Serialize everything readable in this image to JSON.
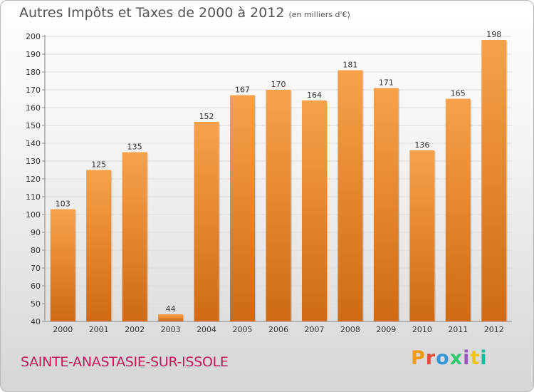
{
  "header": {
    "title": "Autres Impôts et Taxes de 2000 à 2012",
    "unit": "(en milliers d'€)"
  },
  "footer": {
    "town": "SAINTE-ANASTASIE-SUR-ISSOLE",
    "brand": "Proxiti",
    "brand_colors": [
      "#f39c12",
      "#e74c3c",
      "#3498db",
      "#2ecc71",
      "#9b59b6",
      "#f1c40f",
      "#1abc9c"
    ]
  },
  "chart_data": {
    "type": "bar",
    "categories": [
      "2000",
      "2001",
      "2002",
      "2003",
      "2004",
      "2005",
      "2006",
      "2007",
      "2008",
      "2009",
      "2010",
      "2011",
      "2012"
    ],
    "values": [
      103,
      125,
      135,
      44,
      152,
      167,
      170,
      164,
      181,
      171,
      136,
      165,
      198
    ],
    "title": "Autres Impôts et Taxes de 2000 à 2012",
    "ylim": [
      40,
      200
    ],
    "yticks": [
      40,
      50,
      60,
      70,
      80,
      90,
      100,
      110,
      120,
      130,
      140,
      150,
      160,
      170,
      180,
      190,
      200
    ],
    "grid": true,
    "bar_colors": {
      "top": "#f7a24b",
      "bottom": "#d06a14"
    }
  }
}
